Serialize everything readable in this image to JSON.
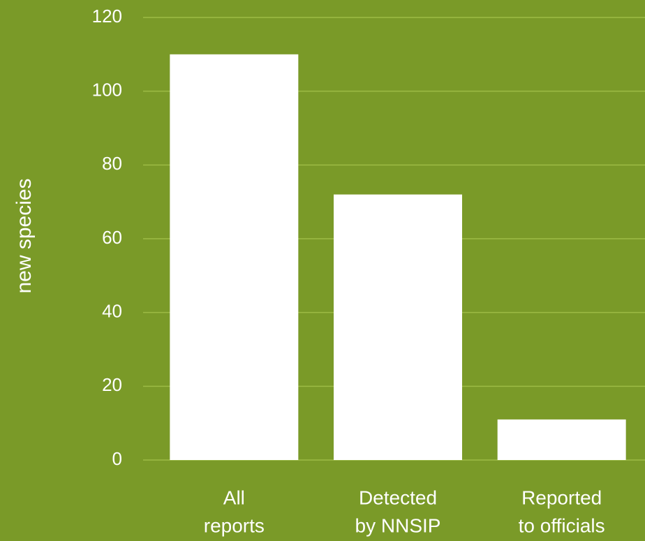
{
  "chart_data": {
    "type": "bar",
    "ylabel": "new species",
    "categories": [
      [
        "All",
        "reports"
      ],
      [
        "Detected",
        "by NNSIP"
      ],
      [
        "Reported",
        "to officials"
      ]
    ],
    "values": [
      110,
      72,
      11
    ],
    "color": "#ffffff",
    "ylim": [
      0,
      120
    ],
    "yticks": [
      0,
      20,
      40,
      60,
      80,
      100,
      120
    ],
    "grid": true
  }
}
